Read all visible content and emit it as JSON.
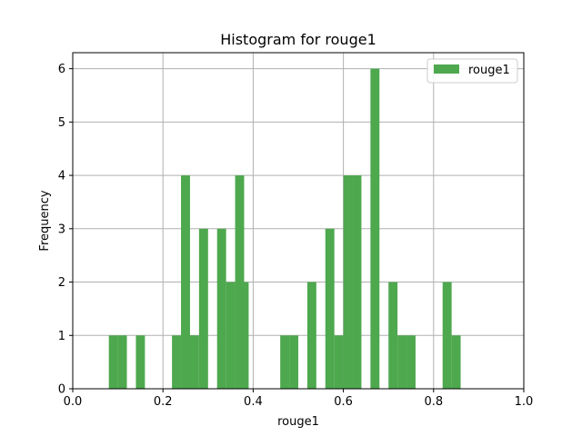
{
  "chart_data": {
    "type": "bar",
    "title": "Histogram for rouge1",
    "xlabel": "rouge1",
    "ylabel": "Frequency",
    "xlim": [
      0.0,
      1.0
    ],
    "ylim": [
      0,
      6.3
    ],
    "xticks": [
      "0.0",
      "0.2",
      "0.4",
      "0.6",
      "0.8",
      "1.0"
    ],
    "xtick_values": [
      0.0,
      0.2,
      0.4,
      0.6,
      0.8,
      1.0
    ],
    "yticks": [
      "0",
      "1",
      "2",
      "3",
      "4",
      "5",
      "6"
    ],
    "ytick_values": [
      0,
      1,
      2,
      3,
      4,
      5,
      6
    ],
    "grid": true,
    "legend": {
      "position": "top-right",
      "entries": [
        "rouge1"
      ]
    },
    "bar_color": "#4ea84e",
    "bin_width": 0.02,
    "series": [
      {
        "name": "rouge1",
        "bins": [
          [
            0.08,
            1
          ],
          [
            0.1,
            1
          ],
          [
            0.14,
            1
          ],
          [
            0.22,
            1
          ],
          [
            0.24,
            4
          ],
          [
            0.25,
            1
          ],
          [
            0.26,
            1
          ],
          [
            0.28,
            3
          ],
          [
            0.32,
            3
          ],
          [
            0.34,
            2
          ],
          [
            0.36,
            4
          ],
          [
            0.37,
            2
          ],
          [
            0.46,
            1
          ],
          [
            0.48,
            1
          ],
          [
            0.52,
            2
          ],
          [
            0.56,
            3
          ],
          [
            0.58,
            1
          ],
          [
            0.6,
            4
          ],
          [
            0.62,
            4
          ],
          [
            0.66,
            6
          ],
          [
            0.7,
            2
          ],
          [
            0.72,
            1
          ],
          [
            0.74,
            1
          ],
          [
            0.82,
            2
          ],
          [
            0.84,
            1
          ]
        ]
      }
    ]
  }
}
